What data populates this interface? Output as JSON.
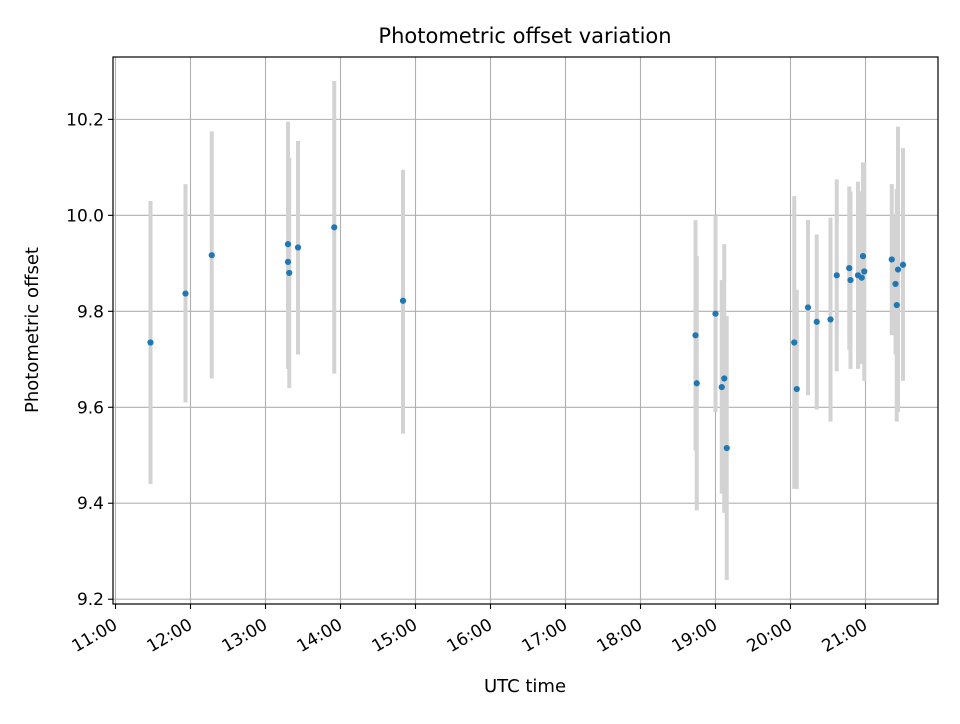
{
  "chart_data": {
    "type": "scatter",
    "title": "Photometric offset variation",
    "xlabel": "UTC time",
    "ylabel": "Photometric offset",
    "x_axis": {
      "kind": "time",
      "range": [
        "10:58",
        "21:58"
      ],
      "ticks": [
        "11:00",
        "12:00",
        "13:00",
        "14:00",
        "15:00",
        "16:00",
        "17:00",
        "18:00",
        "19:00",
        "20:00",
        "21:00"
      ]
    },
    "y_axis": {
      "range": [
        9.19,
        10.33
      ],
      "ticks": [
        9.2,
        9.4,
        9.6,
        9.8,
        10.0,
        10.2
      ],
      "tick_labels": [
        "9.2",
        "9.4",
        "9.6",
        "9.8",
        "10.0",
        "10.2"
      ]
    },
    "grid": true,
    "colors": {
      "marker": "#1f77b4",
      "errorbar": "#d3d3d3",
      "grid": "#b0b0b0"
    },
    "series": [
      {
        "points": [
          {
            "x": "11:28",
            "y": 9.735,
            "lo": 9.44,
            "hi": 10.03
          },
          {
            "x": "11:56",
            "y": 9.837,
            "lo": 9.61,
            "hi": 10.065
          },
          {
            "x": "12:17",
            "y": 9.917,
            "lo": 9.66,
            "hi": 10.175
          },
          {
            "x": "13:18",
            "y": 9.903,
            "lo": 9.68,
            "hi": 10.125
          },
          {
            "x": "13:18",
            "y": 9.94,
            "lo": 9.685,
            "hi": 10.195
          },
          {
            "x": "13:19",
            "y": 9.88,
            "lo": 9.64,
            "hi": 10.12
          },
          {
            "x": "13:26",
            "y": 9.933,
            "lo": 9.71,
            "hi": 10.155
          },
          {
            "x": "13:55",
            "y": 9.975,
            "lo": 9.67,
            "hi": 10.28
          },
          {
            "x": "14:50",
            "y": 9.822,
            "lo": 9.545,
            "hi": 10.095
          },
          {
            "x": "18:44",
            "y": 9.75,
            "lo": 9.51,
            "hi": 9.99
          },
          {
            "x": "18:45",
            "y": 9.65,
            "lo": 9.385,
            "hi": 9.915
          },
          {
            "x": "19:00",
            "y": 9.795,
            "lo": 9.59,
            "hi": 10.0
          },
          {
            "x": "19:05",
            "y": 9.642,
            "lo": 9.42,
            "hi": 9.865
          },
          {
            "x": "19:07",
            "y": 9.66,
            "lo": 9.38,
            "hi": 9.94
          },
          {
            "x": "19:09",
            "y": 9.515,
            "lo": 9.24,
            "hi": 9.79
          },
          {
            "x": "20:03",
            "y": 9.735,
            "lo": 9.43,
            "hi": 10.04
          },
          {
            "x": "20:05",
            "y": 9.638,
            "lo": 9.43,
            "hi": 9.845
          },
          {
            "x": "20:14",
            "y": 9.808,
            "lo": 9.625,
            "hi": 9.99
          },
          {
            "x": "20:21",
            "y": 9.778,
            "lo": 9.595,
            "hi": 9.96
          },
          {
            "x": "20:32",
            "y": 9.783,
            "lo": 9.57,
            "hi": 9.995
          },
          {
            "x": "20:37",
            "y": 9.875,
            "lo": 9.675,
            "hi": 10.075
          },
          {
            "x": "20:47",
            "y": 9.89,
            "lo": 9.72,
            "hi": 10.06
          },
          {
            "x": "20:48",
            "y": 9.865,
            "lo": 9.68,
            "hi": 10.05
          },
          {
            "x": "20:54",
            "y": 9.875,
            "lo": 9.68,
            "hi": 10.07
          },
          {
            "x": "20:57",
            "y": 9.87,
            "lo": 9.69,
            "hi": 10.05
          },
          {
            "x": "20:58",
            "y": 9.915,
            "lo": 9.72,
            "hi": 10.11
          },
          {
            "x": "20:59",
            "y": 9.883,
            "lo": 9.655,
            "hi": 10.11
          },
          {
            "x": "21:21",
            "y": 9.908,
            "lo": 9.75,
            "hi": 10.065
          },
          {
            "x": "21:24",
            "y": 9.857,
            "lo": 9.71,
            "hi": 10.0
          },
          {
            "x": "21:25",
            "y": 9.813,
            "lo": 9.57,
            "hi": 10.055
          },
          {
            "x": "21:26",
            "y": 9.887,
            "lo": 9.59,
            "hi": 10.185
          },
          {
            "x": "21:30",
            "y": 9.897,
            "lo": 9.655,
            "hi": 10.14
          }
        ]
      }
    ]
  }
}
